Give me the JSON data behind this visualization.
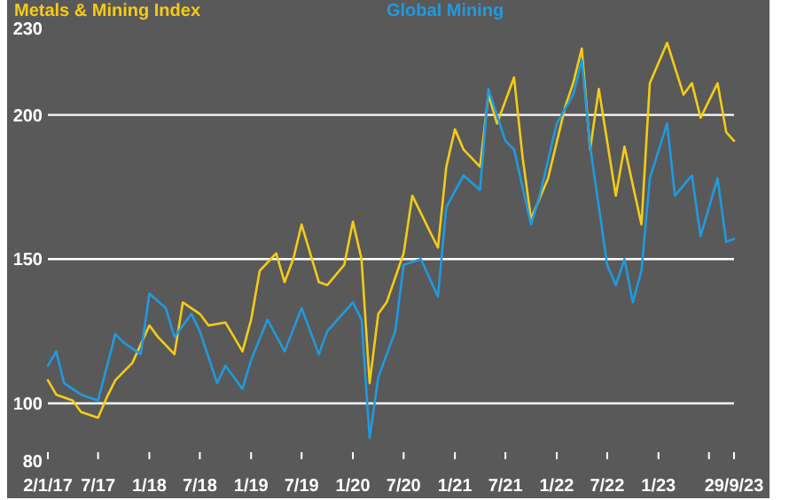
{
  "chart_data": {
    "type": "line",
    "legend": "top",
    "grid": "y",
    "line_style": "solid",
    "xlim": [
      "2017-01-02",
      "2023-09-29"
    ],
    "xticks": [
      {
        "value": "2017-01-02",
        "label": "2/1/17"
      },
      {
        "value": "2017-07-01",
        "label": "7/17"
      },
      {
        "value": "2018-01-01",
        "label": "1/18"
      },
      {
        "value": "2018-07-01",
        "label": "7/18"
      },
      {
        "value": "2019-01-01",
        "label": "1/19"
      },
      {
        "value": "2019-07-01",
        "label": "7/19"
      },
      {
        "value": "2020-01-01",
        "label": "1/20"
      },
      {
        "value": "2020-07-01",
        "label": "7/20"
      },
      {
        "value": "2021-01-01",
        "label": "1/21"
      },
      {
        "value": "2021-07-01",
        "label": "7/21"
      },
      {
        "value": "2022-01-01",
        "label": "1/22"
      },
      {
        "value": "2022-07-01",
        "label": "7/22"
      },
      {
        "value": "2023-01-01",
        "label": "1/23"
      },
      {
        "value": "2023-07-01",
        "label": null
      },
      {
        "value": "2023-09-29",
        "label": "29/9/23"
      }
    ],
    "ylim": [
      80,
      230
    ],
    "yticks": [
      80,
      100,
      150,
      200,
      230
    ],
    "series": [
      {
        "name": "Metals & Mining Index",
        "color": "#f5cc16",
        "x": [
          "2017-01-02",
          "2017-02",
          "2017-04",
          "2017-05",
          "2017-07",
          "2017-08",
          "2017-09",
          "2017-11",
          "2018-01",
          "2018-02",
          "2018-04",
          "2018-05",
          "2018-07",
          "2018-08",
          "2018-10",
          "2018-12",
          "2019-01",
          "2019-02",
          "2019-04",
          "2019-05",
          "2019-06",
          "2019-07",
          "2019-09",
          "2019-10",
          "2019-12",
          "2020-01",
          "2020-02",
          "2020-03",
          "2020-04",
          "2020-05",
          "2020-07",
          "2020-08",
          "2020-10",
          "2020-11",
          "2020-12",
          "2021-01",
          "2021-02",
          "2021-04",
          "2021-05",
          "2021-06",
          "2021-08",
          "2021-09",
          "2021-10",
          "2021-12",
          "2022-02",
          "2022-03",
          "2022-04",
          "2022-05",
          "2022-06",
          "2022-08",
          "2022-09",
          "2022-11",
          "2022-12",
          "2023-02",
          "2023-04",
          "2023-05",
          "2023-06",
          "2023-08",
          "2023-09",
          "2023-09-29"
        ],
        "values": [
          108,
          103,
          101,
          97,
          95,
          102,
          108,
          114,
          127,
          123,
          117,
          135,
          131,
          127,
          128,
          118,
          129,
          146,
          152,
          142,
          150,
          162,
          142,
          141,
          148,
          163,
          150,
          107,
          131,
          135,
          152,
          172,
          160,
          154,
          182,
          195,
          188,
          182,
          207,
          197,
          213,
          185,
          164,
          178,
          203,
          211,
          223,
          188,
          209,
          172,
          189,
          162,
          211,
          225,
          207,
          211,
          199,
          211,
          194,
          191
        ]
      },
      {
        "name": "Global Mining",
        "color": "#1f9be0",
        "x": [
          "2017-01-02",
          "2017-02",
          "2017-03",
          "2017-05",
          "2017-07",
          "2017-09",
          "2017-10",
          "2017-12",
          "2018-01",
          "2018-03",
          "2018-04",
          "2018-06",
          "2018-07",
          "2018-09",
          "2018-10",
          "2018-12",
          "2019-01",
          "2019-03",
          "2019-05",
          "2019-07",
          "2019-09",
          "2019-10",
          "2020-01",
          "2020-02",
          "2020-03",
          "2020-04",
          "2020-06",
          "2020-07",
          "2020-09",
          "2020-11",
          "2020-12",
          "2021-02",
          "2021-04",
          "2021-05",
          "2021-07",
          "2021-08",
          "2021-10",
          "2021-11",
          "2022-01",
          "2022-03",
          "2022-04",
          "2022-05",
          "2022-07",
          "2022-08",
          "2022-09",
          "2022-10",
          "2022-11",
          "2022-12",
          "2023-02",
          "2023-03",
          "2023-05",
          "2023-06",
          "2023-08",
          "2023-09",
          "2023-09-29"
        ],
        "values": [
          113,
          118,
          107,
          103,
          101,
          124,
          121,
          117,
          138,
          133,
          123,
          131,
          125,
          107,
          113,
          105,
          115,
          129,
          118,
          133,
          117,
          125,
          135,
          129,
          88,
          109,
          125,
          148,
          150,
          137,
          168,
          179,
          174,
          209,
          191,
          188,
          162,
          172,
          197,
          207,
          219,
          189,
          148,
          141,
          150,
          135,
          146,
          178,
          197,
          172,
          179,
          158,
          178,
          156,
          157
        ]
      }
    ]
  }
}
